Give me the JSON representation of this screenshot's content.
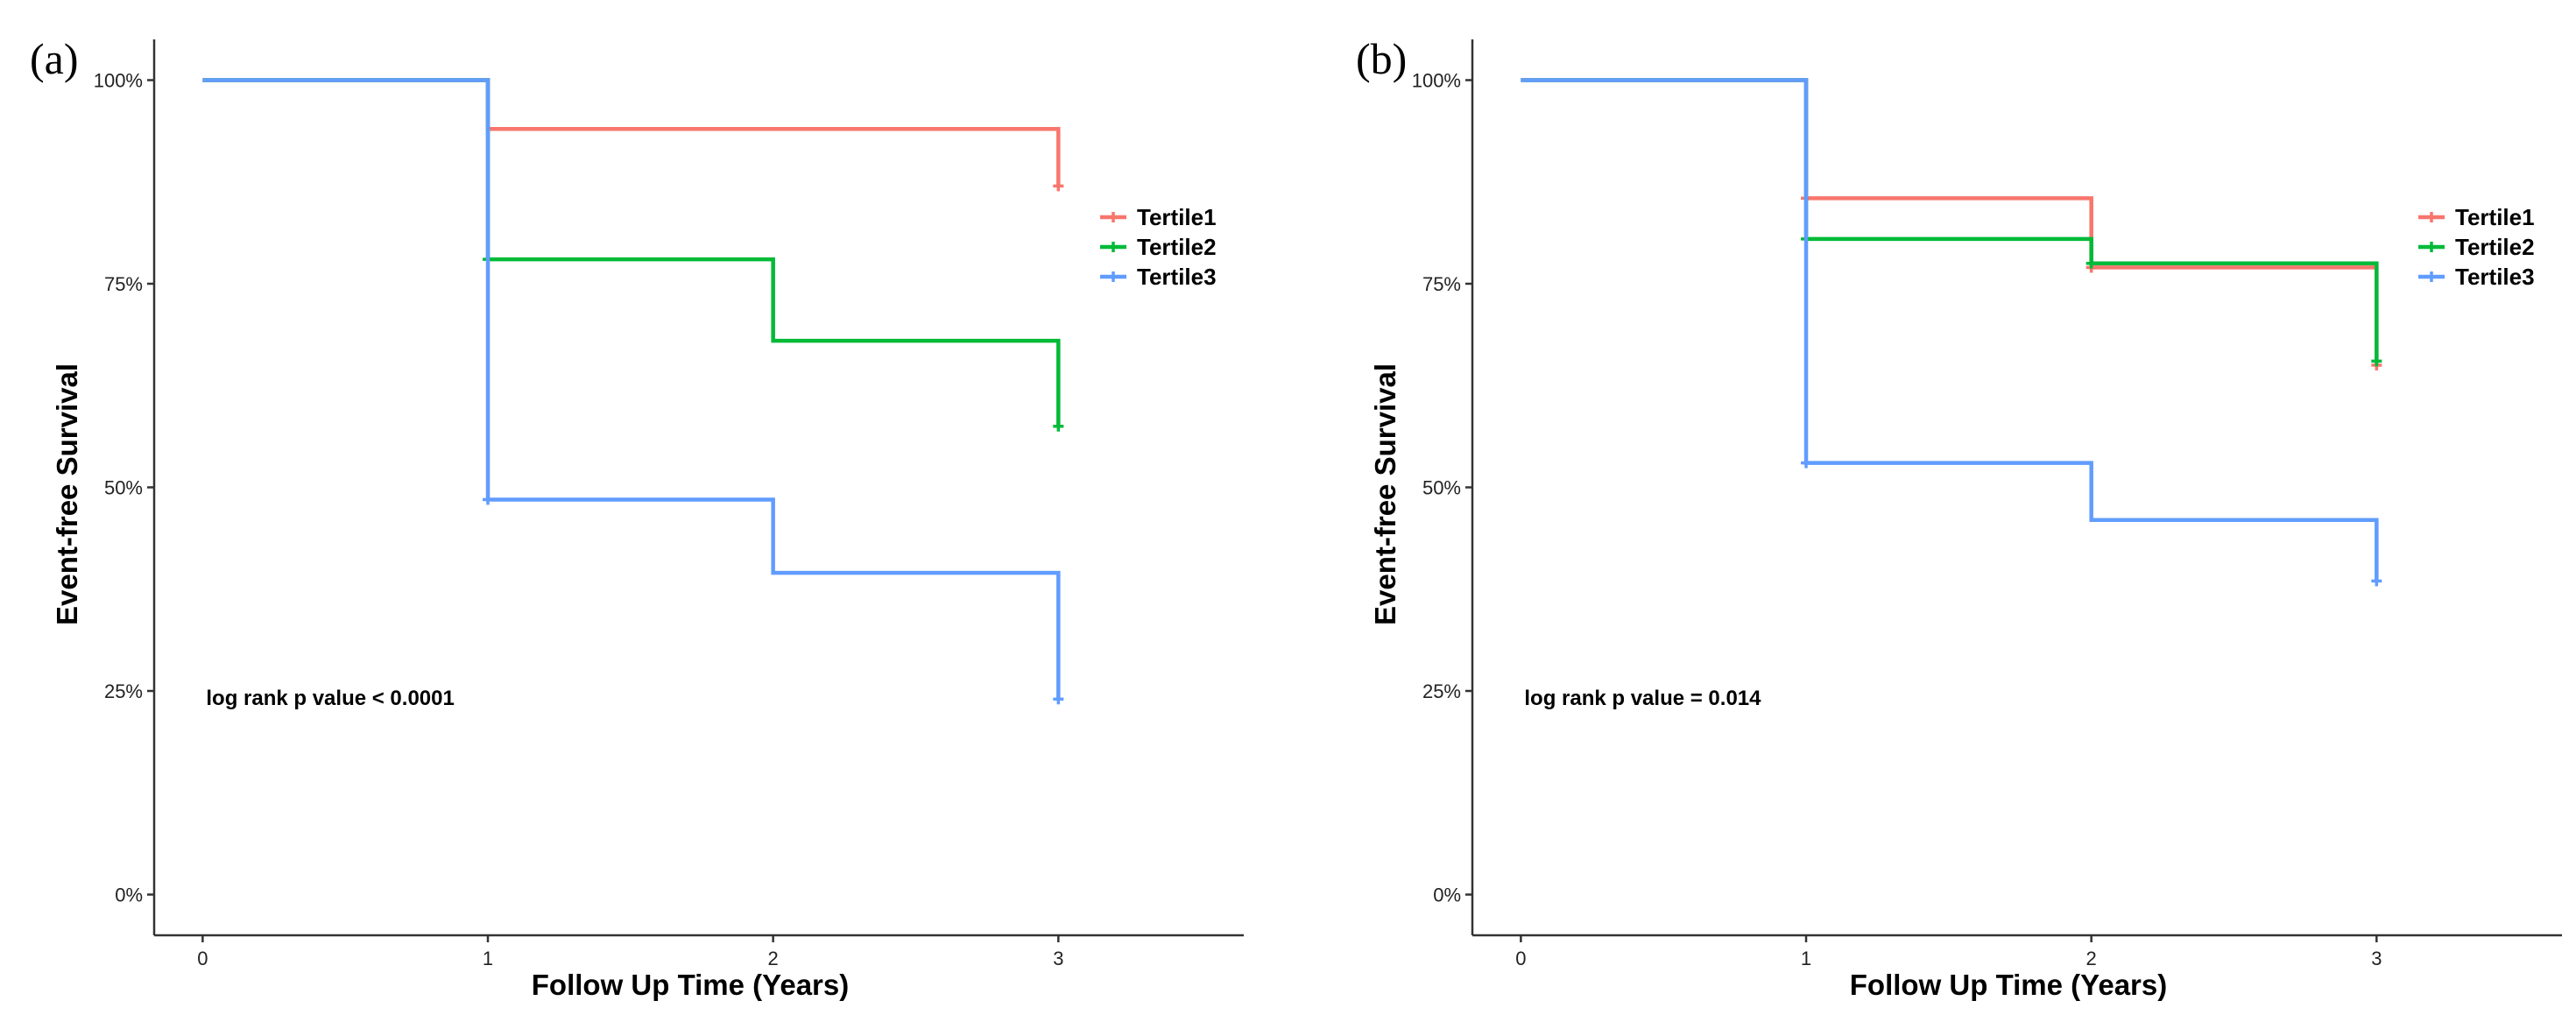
{
  "chart_data": [
    {
      "type": "line",
      "subtype": "kaplan-meier-step",
      "panel": "(a)",
      "xlabel": "Follow Up Time (Years)",
      "ylabel": "Event-free Survival",
      "xlim": [
        -0.17,
        3.65
      ],
      "ylim": [
        -0.05,
        1.05
      ],
      "x_ticks": [
        0,
        1,
        2,
        3
      ],
      "x_tick_labels": [
        "0",
        "1",
        "2",
        "3"
      ],
      "y_ticks": [
        0,
        0.25,
        0.5,
        0.75,
        1.0
      ],
      "y_tick_labels": [
        "0%",
        "25%",
        "50%",
        "75%",
        "100%"
      ],
      "grid": false,
      "legend_position": "right",
      "annotation": "log rank p value < 0.0001",
      "series": [
        {
          "name": "Tertile1",
          "color": "#F8766D",
          "steps": [
            [
              0,
              1.0
            ],
            [
              1,
              0.94
            ],
            [
              3,
              0.87
            ]
          ],
          "censor": [
            [
              3,
              0.87
            ]
          ]
        },
        {
          "name": "Tertile2",
          "color": "#00BA38",
          "steps": [
            [
              0,
              1.0
            ],
            [
              1,
              0.78
            ],
            [
              2,
              0.68
            ],
            [
              3,
              0.575
            ]
          ],
          "censor": [
            [
              1,
              0.78
            ],
            [
              3,
              0.575
            ]
          ]
        },
        {
          "name": "Tertile3",
          "color": "#619CFF",
          "steps": [
            [
              0,
              1.0
            ],
            [
              1,
              0.485
            ],
            [
              2,
              0.395
            ],
            [
              3,
              0.24
            ]
          ],
          "censor": [
            [
              1,
              0.485
            ],
            [
              3,
              0.24
            ]
          ]
        }
      ]
    },
    {
      "type": "line",
      "subtype": "kaplan-meier-step",
      "panel": "(b)",
      "xlabel": "Follow Up Time (Years)",
      "ylabel": "Event-free Survival",
      "xlim": [
        -0.17,
        3.65
      ],
      "ylim": [
        -0.05,
        1.05
      ],
      "x_ticks": [
        0,
        1,
        2,
        3
      ],
      "x_tick_labels": [
        "0",
        "1",
        "2",
        "3"
      ],
      "y_ticks": [
        0,
        0.25,
        0.5,
        0.75,
        1.0
      ],
      "y_tick_labels": [
        "0%",
        "25%",
        "50%",
        "75%",
        "100%"
      ],
      "grid": false,
      "legend_position": "right",
      "annotation": "log rank p value = 0.014",
      "series": [
        {
          "name": "Tertile1",
          "color": "#F8766D",
          "steps": [
            [
              0,
              1.0
            ],
            [
              1,
              0.855
            ],
            [
              2,
              0.77
            ],
            [
              3,
              0.65
            ]
          ],
          "censor": [
            [
              1,
              0.855
            ],
            [
              2,
              0.77
            ],
            [
              3,
              0.65
            ]
          ]
        },
        {
          "name": "Tertile2",
          "color": "#00BA38",
          "steps": [
            [
              0,
              1.0
            ],
            [
              1,
              0.805
            ],
            [
              2,
              0.775
            ],
            [
              3,
              0.655
            ]
          ],
          "censor": [
            [
              1,
              0.805
            ],
            [
              2,
              0.775
            ],
            [
              3,
              0.655
            ]
          ]
        },
        {
          "name": "Tertile3",
          "color": "#619CFF",
          "steps": [
            [
              0,
              1.0
            ],
            [
              1,
              0.53
            ],
            [
              2,
              0.46
            ],
            [
              3,
              0.385
            ]
          ],
          "censor": [
            [
              1,
              0.53
            ],
            [
              3,
              0.385
            ]
          ]
        }
      ]
    }
  ]
}
